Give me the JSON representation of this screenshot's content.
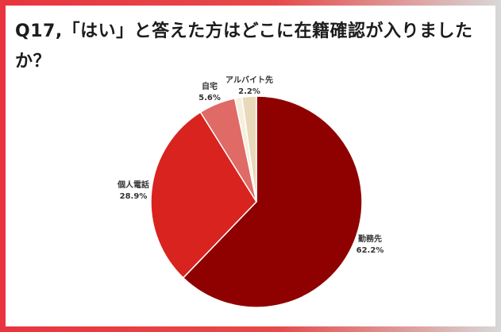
{
  "chart_data": {
    "type": "pie",
    "title": "Q17,「はい」と答えた方はどこに在籍確認が入りましたか？",
    "slices": [
      {
        "label": "勤務先",
        "value": 62.2,
        "value_label": "62.2%",
        "color": "#8f0000"
      },
      {
        "label": "個人電話",
        "value": 28.9,
        "value_label": "28.9%",
        "color": "#d8231f"
      },
      {
        "label": "自宅",
        "value": 5.6,
        "value_label": "5.6%",
        "color": "#e06a66"
      },
      {
        "label": "",
        "value": 1.1,
        "value_label": "",
        "color": "#f7eedc"
      },
      {
        "label": "アルバイト先",
        "value": 2.2,
        "value_label": "2.2%",
        "color": "#e8d9bb"
      }
    ],
    "start": "12 o'clock",
    "direction": "clockwise",
    "legend": "none"
  },
  "colors": {
    "frame_left": "#e8353f",
    "frame_right": "#d8d8d8",
    "title_text": "#1c1c1c"
  }
}
